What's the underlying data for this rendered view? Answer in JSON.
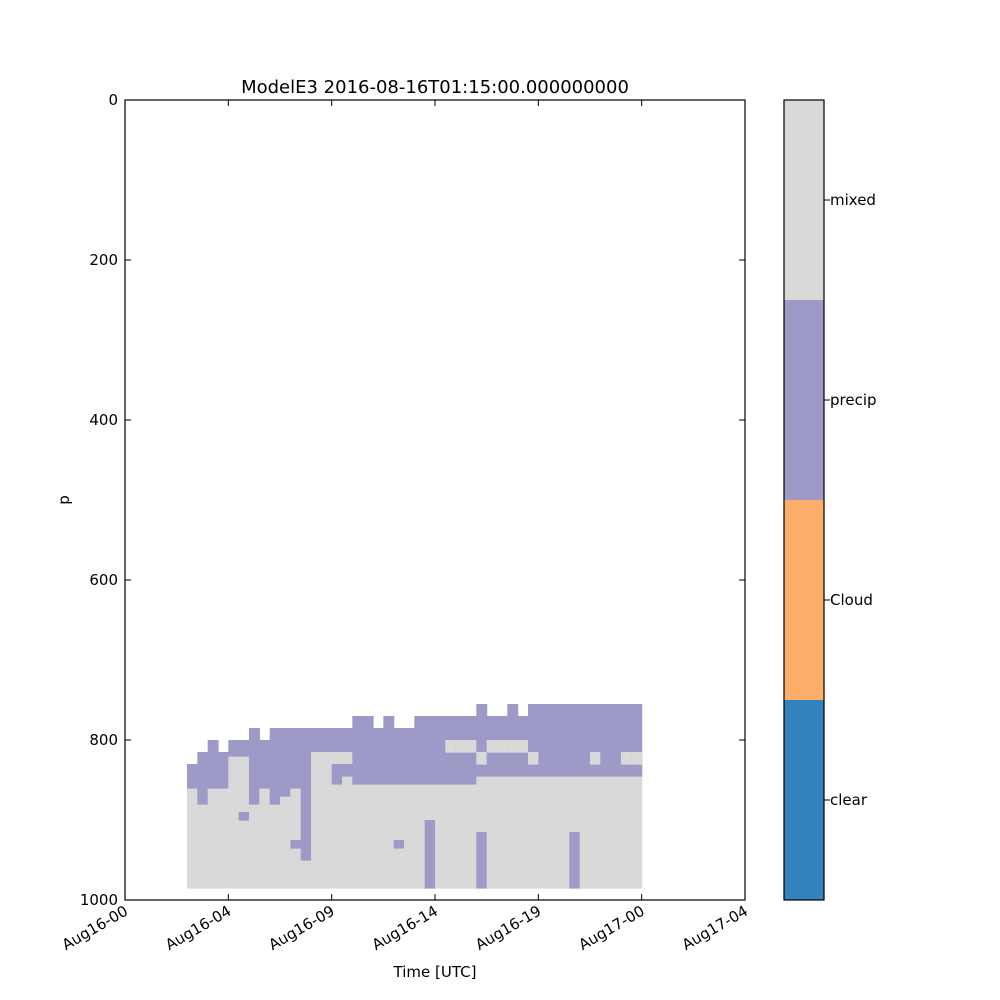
{
  "chart_data": {
    "type": "heatmap",
    "title": "ModelE3 2016-08-16T01:15:00.000000000",
    "xlabel": "Time [UTC]",
    "ylabel": "p",
    "x_tick_labels": [
      "Aug16-00",
      "Aug16-04",
      "Aug16-09",
      "Aug16-14",
      "Aug16-19",
      "Aug17-00",
      "Aug17-04"
    ],
    "x_ticks_hours": [
      0,
      5,
      10,
      15,
      20,
      25,
      30
    ],
    "xlim_hours": [
      0,
      30
    ],
    "y_ticks": [
      0,
      200,
      400,
      600,
      800,
      1000
    ],
    "ylim": [
      1000,
      0
    ],
    "y_inverted": true,
    "cell_hours": 0.5,
    "colorbar": {
      "categories": [
        "clear",
        "Cloud",
        "precip",
        "mixed"
      ],
      "colors": [
        "#3182bd",
        "#fdae6b",
        "#9e9ac8",
        "#d9d9d9"
      ]
    },
    "columns": [
      {
        "t": 3.25,
        "precip": [
          830,
          860
        ],
        "mixed": [
          860,
          985
        ]
      },
      {
        "t": 3.75,
        "precip": [
          815,
          880
        ],
        "mixed": [
          880,
          985
        ]
      },
      {
        "t": 4.25,
        "precip": [
          800,
          860
        ],
        "mixed": [
          860,
          985
        ]
      },
      {
        "t": 4.75,
        "precip": [
          815,
          860
        ],
        "mixed": [
          860,
          985
        ]
      },
      {
        "t": 5.25,
        "precip": [
          800,
          820
        ],
        "mixed": [
          820,
          985
        ]
      },
      {
        "t": 5.75,
        "precip": [
          800,
          820
        ],
        "mixed": [
          820,
          985
        ],
        "extra_precip": [
          [
            890,
            900
          ]
        ]
      },
      {
        "t": 6.25,
        "precip": [
          785,
          880
        ],
        "mixed": [
          880,
          985
        ]
      },
      {
        "t": 6.75,
        "precip": [
          800,
          860
        ],
        "mixed": [
          860,
          985
        ]
      },
      {
        "t": 7.25,
        "precip": [
          785,
          880
        ],
        "mixed": [
          880,
          985
        ]
      },
      {
        "t": 7.75,
        "precip": [
          785,
          870
        ],
        "mixed": [
          870,
          985
        ]
      },
      {
        "t": 8.25,
        "precip": [
          785,
          860
        ],
        "mixed": [
          860,
          985
        ],
        "extra_precip": [
          [
            925,
            935
          ]
        ]
      },
      {
        "t": 8.75,
        "precip": [
          785,
          950
        ],
        "mixed": [
          950,
          985
        ]
      },
      {
        "t": 9.25,
        "precip": [
          785,
          815
        ],
        "mixed": [
          815,
          985
        ],
        "mixed_islands": [
          [
            815,
            830
          ]
        ]
      },
      {
        "t": 9.75,
        "precip": [
          785,
          815
        ],
        "mixed": [
          815,
          985
        ],
        "mixed_islands": [
          [
            815,
            830
          ]
        ]
      },
      {
        "t": 10.25,
        "precip": [
          785,
          815
        ],
        "mixed": [
          815,
          985
        ],
        "mixed_islands": [
          [
            815,
            830
          ]
        ],
        "extra_precip": [
          [
            830,
            855
          ]
        ]
      },
      {
        "t": 10.75,
        "precip": [
          785,
          815
        ],
        "mixed": [
          815,
          985
        ],
        "mixed_islands": [
          [
            815,
            830
          ]
        ],
        "extra_precip": [
          [
            830,
            845
          ]
        ]
      },
      {
        "t": 11.25,
        "precip": [
          770,
          855
        ],
        "mixed": [
          855,
          985
        ]
      },
      {
        "t": 11.75,
        "precip": [
          770,
          855
        ],
        "mixed": [
          855,
          985
        ]
      },
      {
        "t": 12.25,
        "precip": [
          785,
          855
        ],
        "mixed": [
          855,
          985
        ]
      },
      {
        "t": 12.75,
        "precip": [
          770,
          855
        ],
        "mixed": [
          855,
          985
        ]
      },
      {
        "t": 13.25,
        "precip": [
          785,
          855
        ],
        "mixed": [
          855,
          985
        ],
        "extra_precip": [
          [
            925,
            935
          ]
        ]
      },
      {
        "t": 13.75,
        "precip": [
          785,
          855
        ],
        "mixed": [
          855,
          985
        ]
      },
      {
        "t": 14.25,
        "precip": [
          770,
          855
        ],
        "mixed": [
          855,
          985
        ]
      },
      {
        "t": 14.75,
        "precip": [
          770,
          855
        ],
        "mixed": [
          855,
          985
        ],
        "extra_precip": [
          [
            900,
            985
          ]
        ]
      },
      {
        "t": 15.25,
        "precip": [
          770,
          855
        ],
        "mixed": [
          855,
          985
        ]
      },
      {
        "t": 15.75,
        "precip": [
          770,
          855
        ],
        "mixed": [
          855,
          985
        ],
        "mixed_islands": [
          [
            800,
            815
          ]
        ]
      },
      {
        "t": 16.25,
        "precip": [
          770,
          855
        ],
        "mixed": [
          855,
          985
        ],
        "mixed_islands": [
          [
            800,
            815
          ]
        ]
      },
      {
        "t": 16.75,
        "precip": [
          770,
          855
        ],
        "mixed": [
          855,
          985
        ],
        "mixed_islands": [
          [
            800,
            815
          ]
        ]
      },
      {
        "t": 17.25,
        "precip": [
          755,
          845
        ],
        "mixed": [
          845,
          985
        ],
        "mixed_islands": [
          [
            815,
            830
          ]
        ],
        "extra_precip": [
          [
            915,
            985
          ]
        ]
      },
      {
        "t": 17.75,
        "precip": [
          770,
          845
        ],
        "mixed": [
          845,
          985
        ],
        "mixed_islands": [
          [
            800,
            815
          ]
        ]
      },
      {
        "t": 18.25,
        "precip": [
          770,
          845
        ],
        "mixed": [
          845,
          985
        ],
        "mixed_islands": [
          [
            800,
            815
          ]
        ]
      },
      {
        "t": 18.75,
        "precip": [
          755,
          845
        ],
        "mixed": [
          845,
          985
        ],
        "mixed_islands": [
          [
            800,
            815
          ]
        ]
      },
      {
        "t": 19.25,
        "precip": [
          770,
          845
        ],
        "mixed": [
          845,
          985
        ],
        "mixed_islands": [
          [
            800,
            815
          ]
        ]
      },
      {
        "t": 19.75,
        "precip": [
          755,
          845
        ],
        "mixed": [
          845,
          985
        ],
        "mixed_islands": [
          [
            815,
            830
          ]
        ]
      },
      {
        "t": 20.25,
        "precip": [
          755,
          845
        ],
        "mixed": [
          845,
          985
        ]
      },
      {
        "t": 20.75,
        "precip": [
          755,
          845
        ],
        "mixed": [
          845,
          985
        ]
      },
      {
        "t": 21.25,
        "precip": [
          755,
          845
        ],
        "mixed": [
          845,
          985
        ]
      },
      {
        "t": 21.75,
        "precip": [
          755,
          845
        ],
        "mixed": [
          845,
          985
        ],
        "extra_precip": [
          [
            915,
            985
          ]
        ]
      },
      {
        "t": 22.25,
        "precip": [
          755,
          845
        ],
        "mixed": [
          845,
          985
        ]
      },
      {
        "t": 22.75,
        "precip": [
          755,
          845
        ],
        "mixed": [
          845,
          985
        ],
        "mixed_islands": [
          [
            815,
            830
          ]
        ]
      },
      {
        "t": 23.25,
        "precip": [
          755,
          845
        ],
        "mixed": [
          845,
          985
        ]
      },
      {
        "t": 23.75,
        "precip": [
          755,
          845
        ],
        "mixed": [
          845,
          985
        ]
      },
      {
        "t": 24.25,
        "precip": [
          755,
          845
        ],
        "mixed": [
          845,
          985
        ],
        "mixed_islands": [
          [
            815,
            830
          ]
        ]
      },
      {
        "t": 24.75,
        "precip": [
          755,
          845
        ],
        "mixed": [
          845,
          985
        ],
        "mixed_islands": [
          [
            815,
            830
          ]
        ]
      }
    ]
  }
}
